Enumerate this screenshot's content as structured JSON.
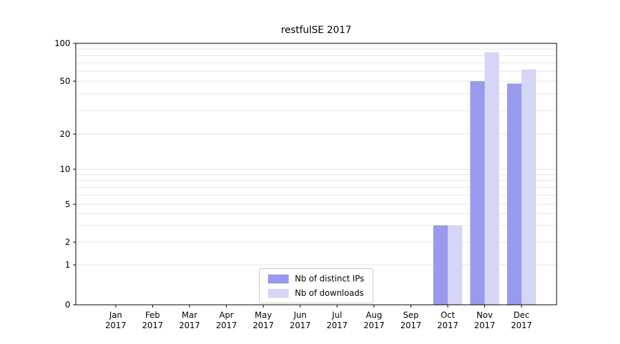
{
  "chart_data": {
    "type": "bar",
    "title": "restfulSE 2017",
    "categories": [
      "Jan",
      "Feb",
      "Mar",
      "Apr",
      "May",
      "Jun",
      "Jul",
      "Aug",
      "Sep",
      "Oct",
      "Nov",
      "Dec"
    ],
    "year_label": "2017",
    "series": [
      {
        "name": "Nb of distinct IPs",
        "color": "#9999ee",
        "values": [
          0,
          0,
          0,
          0,
          0,
          0,
          0,
          0,
          0,
          3,
          50,
          48
        ]
      },
      {
        "name": "Nb of downloads",
        "color": "#d5d5f7",
        "values": [
          0,
          0,
          0,
          0,
          0,
          0,
          0,
          0,
          0,
          3,
          85,
          62
        ]
      }
    ],
    "y_ticks": [
      0,
      1,
      2,
      5,
      10,
      20,
      50,
      100
    ],
    "grid_values": [
      1,
      2,
      3,
      4,
      5,
      6,
      7,
      8,
      9,
      10,
      20,
      30,
      40,
      50,
      60,
      70,
      80,
      90,
      100
    ],
    "ylim": [
      0,
      100
    ],
    "scale": "symlog",
    "grid": "horizontal",
    "legend_position": "lower center",
    "colors": {
      "axis": "#000000",
      "gridline": "#e6e6e6",
      "legend_border": "#cccccc",
      "background": "#ffffff"
    }
  }
}
